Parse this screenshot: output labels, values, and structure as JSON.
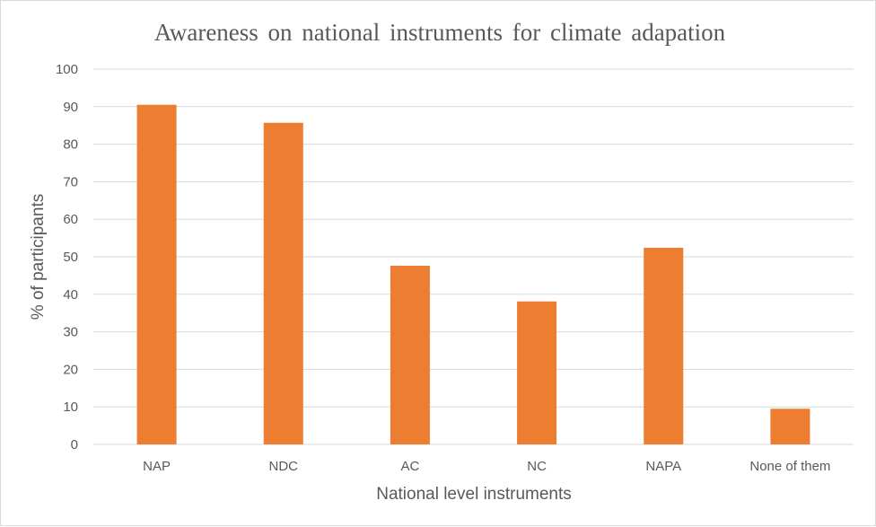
{
  "chart_data": {
    "type": "bar",
    "title": "Awareness on national instruments for climate adapation",
    "xlabel": "National level instruments",
    "ylabel": "% of participants",
    "categories": [
      "NAP",
      "NDC",
      "AC",
      "NC",
      "NAPA",
      "None of them"
    ],
    "values": [
      90.5,
      85.7,
      47.6,
      38.1,
      52.4,
      9.5
    ],
    "ylim": [
      0,
      100
    ],
    "yticks": [
      0,
      10,
      20,
      30,
      40,
      50,
      60,
      70,
      80,
      90,
      100
    ],
    "grid": true,
    "legend": "none",
    "bar_color": "#ED7D31"
  }
}
